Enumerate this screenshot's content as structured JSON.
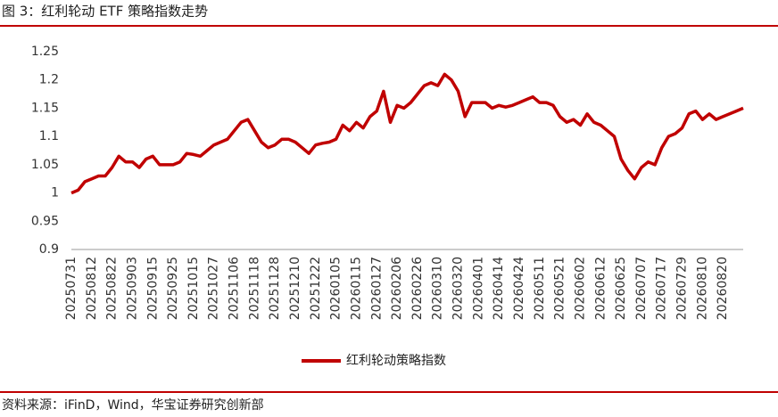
{
  "chart_data": {
    "type": "line",
    "title": "图 3：红利轮动 ETF 策略指数走势",
    "source": "资料来源：iFinD，Wind，华宝证券研究创新部",
    "categories": [
      "20250731",
      null,
      null,
      "20250812",
      null,
      null,
      "20250822",
      null,
      null,
      "20250903",
      null,
      null,
      "20250915",
      null,
      null,
      "20250925",
      null,
      null,
      "20251015",
      null,
      null,
      "20251027",
      null,
      null,
      "20251106",
      null,
      null,
      "20251118",
      null,
      null,
      "20251128",
      null,
      null,
      "20251210",
      null,
      null,
      "20251222",
      null,
      null,
      "20260105",
      null,
      null,
      "20260115",
      null,
      null,
      "20260127",
      null,
      null,
      "20260206",
      null,
      null,
      "20260226",
      null,
      null,
      "20260310",
      null,
      null,
      "20260320",
      null,
      null,
      "20260401",
      null,
      null,
      "20260414",
      null,
      null,
      "20260424",
      null,
      null,
      "20260511",
      null,
      null,
      "20260521",
      null,
      null,
      "20260602",
      null,
      null,
      "20260612",
      null,
      null,
      "20260625",
      null,
      null,
      "20260707",
      null,
      null,
      "20260717",
      null,
      null,
      "20260729",
      null,
      null,
      "20260810",
      null,
      null,
      "20260820",
      null,
      null,
      null
    ],
    "series": [
      {
        "name": "红利轮动策略指数",
        "color": "#c00000",
        "values": [
          1.0,
          1.005,
          1.02,
          1.025,
          1.03,
          1.03,
          1.045,
          1.065,
          1.055,
          1.055,
          1.045,
          1.06,
          1.065,
          1.05,
          1.05,
          1.05,
          1.055,
          1.07,
          1.068,
          1.065,
          1.075,
          1.085,
          1.09,
          1.095,
          1.11,
          1.125,
          1.13,
          1.11,
          1.09,
          1.08,
          1.085,
          1.095,
          1.095,
          1.09,
          1.08,
          1.07,
          1.085,
          1.088,
          1.09,
          1.095,
          1.12,
          1.11,
          1.125,
          1.115,
          1.135,
          1.145,
          1.18,
          1.125,
          1.155,
          1.15,
          1.16,
          1.175,
          1.19,
          1.195,
          1.19,
          1.21,
          1.2,
          1.18,
          1.135,
          1.16,
          1.16,
          1.16,
          1.15,
          1.155,
          1.152,
          1.155,
          1.16,
          1.165,
          1.17,
          1.16,
          1.16,
          1.155,
          1.135,
          1.125,
          1.13,
          1.12,
          1.14,
          1.125,
          1.12,
          1.11,
          1.1,
          1.06,
          1.04,
          1.025,
          1.045,
          1.055,
          1.05,
          1.08,
          1.1,
          1.105,
          1.115,
          1.14,
          1.145,
          1.13,
          1.14,
          1.13,
          1.135,
          1.14,
          1.145,
          1.15
        ]
      }
    ],
    "ylim": [
      0.9,
      1.25
    ],
    "yticks": [
      0.9,
      0.95,
      1,
      1.05,
      1.1,
      1.15,
      1.2,
      1.25
    ],
    "grid": false
  }
}
